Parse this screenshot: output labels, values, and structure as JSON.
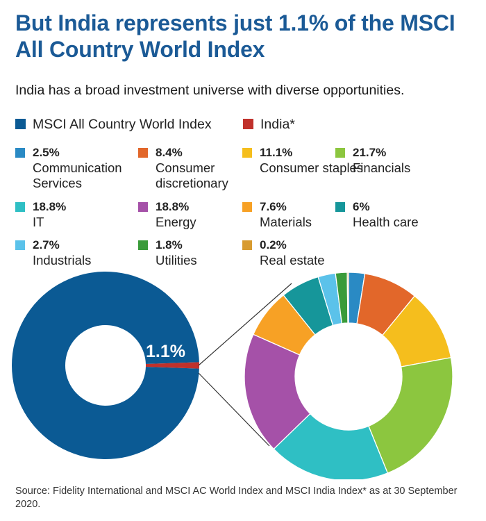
{
  "title": "But India represents just 1.1% of the MSCI All Country World Index",
  "subtitle": "India has a broad investment universe with diverse opportunities.",
  "legend": [
    {
      "label": "MSCI All Country World Index",
      "color": "#0b5a94"
    },
    {
      "label": "India*",
      "color": "#c0312b"
    }
  ],
  "chart_data": [
    {
      "type": "pie",
      "subtype": "donut",
      "slices": [
        {
          "name": "MSCI All Country World Index",
          "value": 98.9,
          "color": "#0b5a94"
        },
        {
          "name": "India*",
          "value": 1.1,
          "color": "#c0312b"
        }
      ],
      "annotation": "1.1%"
    },
    {
      "type": "pie",
      "subtype": "donut",
      "slices": [
        {
          "name": "Communication Services",
          "value": 2.5,
          "label": "2.5%",
          "color": "#2a8ac4"
        },
        {
          "name": "Consumer discretionary",
          "value": 8.4,
          "label": "8.4%",
          "color": "#e2672a"
        },
        {
          "name": "Consumer staples",
          "value": 11.1,
          "label": "11.1%",
          "color": "#f5be1d"
        },
        {
          "name": "Financials",
          "value": 21.7,
          "label": "21.7%",
          "color": "#8cc63f"
        },
        {
          "name": "IT",
          "value": 18.8,
          "label": "18.8%",
          "color": "#2fbfc4"
        },
        {
          "name": "Energy",
          "value": 18.8,
          "label": "18.8%",
          "color": "#a551a8"
        },
        {
          "name": "Materials",
          "value": 7.6,
          "label": "7.6%",
          "color": "#f7a125"
        },
        {
          "name": "Health care",
          "value": 6,
          "label": "6%",
          "color": "#16969a"
        },
        {
          "name": "Industrials",
          "value": 2.7,
          "label": "2.7%",
          "color": "#5bc2ea"
        },
        {
          "name": "Utilities",
          "value": 1.8,
          "label": "1.8%",
          "color": "#3a9b3a"
        },
        {
          "name": "Real estate",
          "value": 0.2,
          "label": "0.2%",
          "color": "#d89b30"
        }
      ]
    }
  ],
  "categories_legend": [
    {
      "pct": "2.5%",
      "label": "Communication Services",
      "color": "#2a8ac4"
    },
    {
      "pct": "8.4%",
      "label": "Consumer discretionary",
      "color": "#e2672a"
    },
    {
      "pct": "11.1%",
      "label": "Consumer staples",
      "color": "#f5be1d"
    },
    {
      "pct": "21.7%",
      "label": "Financials",
      "color": "#8cc63f"
    },
    {
      "pct": "18.8%",
      "label": "IT",
      "color": "#2fbfc4"
    },
    {
      "pct": "18.8%",
      "label": "Energy",
      "color": "#a551a8"
    },
    {
      "pct": "7.6%",
      "label": "Materials",
      "color": "#f7a125"
    },
    {
      "pct": "6%",
      "label": "Health care",
      "color": "#16969a"
    },
    {
      "pct": "2.7%",
      "label": "Industrials",
      "color": "#5bc2ea"
    },
    {
      "pct": "1.8%",
      "label": "Utilities",
      "color": "#3a9b3a"
    },
    {
      "pct": "0.2%",
      "label": "Real estate",
      "color": "#d89b30"
    }
  ],
  "source": "Source: Fidelity International and MSCI AC World Index and MSCI India Index* as at 30 September 2020."
}
